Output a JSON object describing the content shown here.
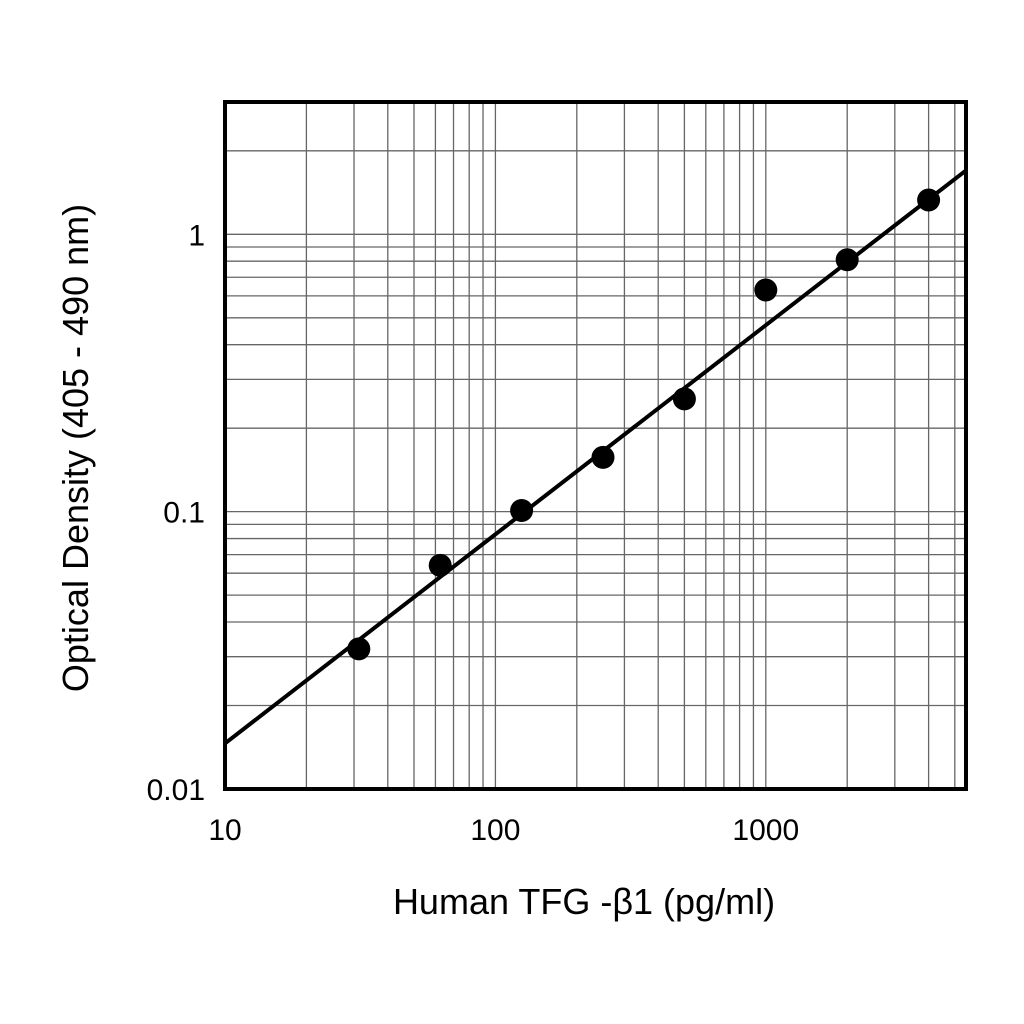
{
  "chart_data": {
    "type": "scatter",
    "title": "",
    "xlabel": "Human TFG -β1 (pg/ml)",
    "ylabel": "Optical Density (405 - 490 nm)",
    "x_scale": "log",
    "y_scale": "log",
    "xlim": [
      10,
      5500
    ],
    "ylim": [
      0.01,
      3
    ],
    "x_ticks": [
      {
        "value": 10,
        "label": "10"
      },
      {
        "value": 100,
        "label": "100"
      },
      {
        "value": 1000,
        "label": "1000"
      }
    ],
    "y_ticks": [
      {
        "value": 0.01,
        "label": "0.01"
      },
      {
        "value": 0.1,
        "label": "0.1"
      },
      {
        "value": 1,
        "label": "1"
      }
    ],
    "grid": true,
    "series": [
      {
        "type": "scatter",
        "x": [
          31.25,
          62.5,
          125,
          250,
          500,
          1000,
          2000,
          4000
        ],
        "y": [
          0.032,
          0.064,
          0.101,
          0.157,
          0.255,
          0.63,
          0.81,
          1.33
        ]
      },
      {
        "type": "line",
        "x": [
          10,
          5500
        ],
        "y": [
          0.0146,
          1.7
        ]
      }
    ],
    "colors": {
      "points": "#000000",
      "line": "#000000",
      "grid": "#666666",
      "frame": "#000000"
    }
  }
}
